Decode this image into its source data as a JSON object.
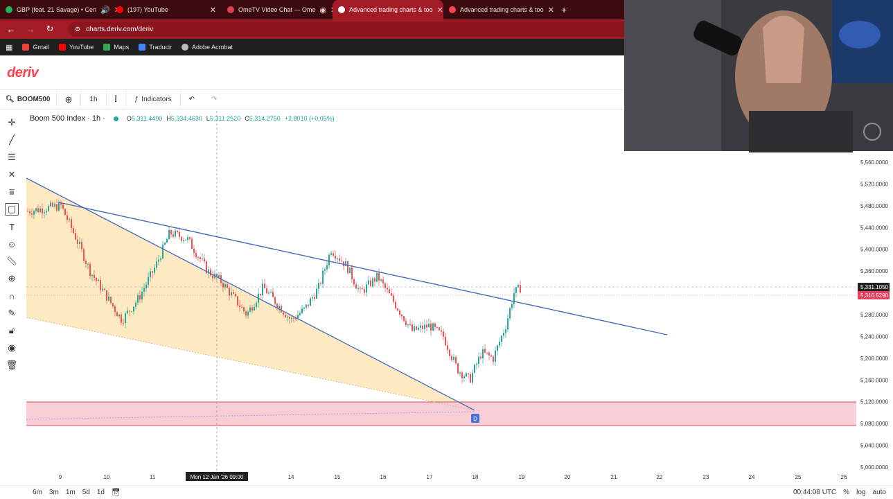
{
  "browser": {
    "tabs": [
      {
        "label": "GBP (feat. 21 Savage) • Cen",
        "color": "#1db954",
        "active": false,
        "audio": true
      },
      {
        "label": "(197) YouTube",
        "color": "#ff0000",
        "active": false
      },
      {
        "label": "OmeTV Video Chat — Ome",
        "color": "#e04050",
        "active": false
      },
      {
        "label": "Advanced trading charts & too",
        "color": "#ff444f",
        "active": true
      },
      {
        "label": "Advanced trading charts & too",
        "color": "#ff444f",
        "active": false
      }
    ],
    "url": "charts.deriv.com/deriv",
    "bookmarks": [
      {
        "label": "Gmail",
        "color": "#ea4335"
      },
      {
        "label": "YouTube",
        "color": "#ff0000"
      },
      {
        "label": "Maps",
        "color": "#34a853"
      },
      {
        "label": "Traducir",
        "color": "#4285f4"
      },
      {
        "label": "Adobe Acrobat",
        "color": "#bbbbbb"
      }
    ]
  },
  "app": {
    "logo": "deriv",
    "symbol": "BOOM500",
    "interval": "1h",
    "indicators_label": "Indicators"
  },
  "legend": {
    "title": "Boom 500 Index · 1h ·",
    "open": "5,311.4490",
    "high": "5,334.4630",
    "low": "5,311.2520",
    "close": "5,314.2750",
    "change": "+2.8010 (+0.05%)"
  },
  "chart_data": {
    "type": "candlestick",
    "price_axis": [
      "5,560.0000",
      "5,520.0000",
      "5,480.0000",
      "5,440.0000",
      "5,400.0000",
      "5,360.0000",
      "5,280.0000",
      "5,240.0000",
      "5,200.0000",
      "5,160.0000",
      "5,120.0000",
      "5,080.0000",
      "5,040.0000",
      "5,000.0000"
    ],
    "date_axis": [
      "9",
      "10",
      "11",
      "14",
      "15",
      "16",
      "17",
      "18",
      "19",
      "20",
      "21",
      "22",
      "23",
      "24",
      "25",
      "26"
    ],
    "crosshair_date": "Mon 12 Jan '26   09:00",
    "last_price": "5,331.1050",
    "current_price": "5,316.5290",
    "marker_label": "D",
    "candle_colors": {
      "up": "#26a69a",
      "down": "#ef5350"
    }
  },
  "bottom": {
    "resolutions": [
      "6m",
      "3m",
      "1m",
      "5d",
      "1d"
    ],
    "time": "00:44:08 UTC",
    "percent": "%",
    "log": "log",
    "auto": "auto"
  }
}
